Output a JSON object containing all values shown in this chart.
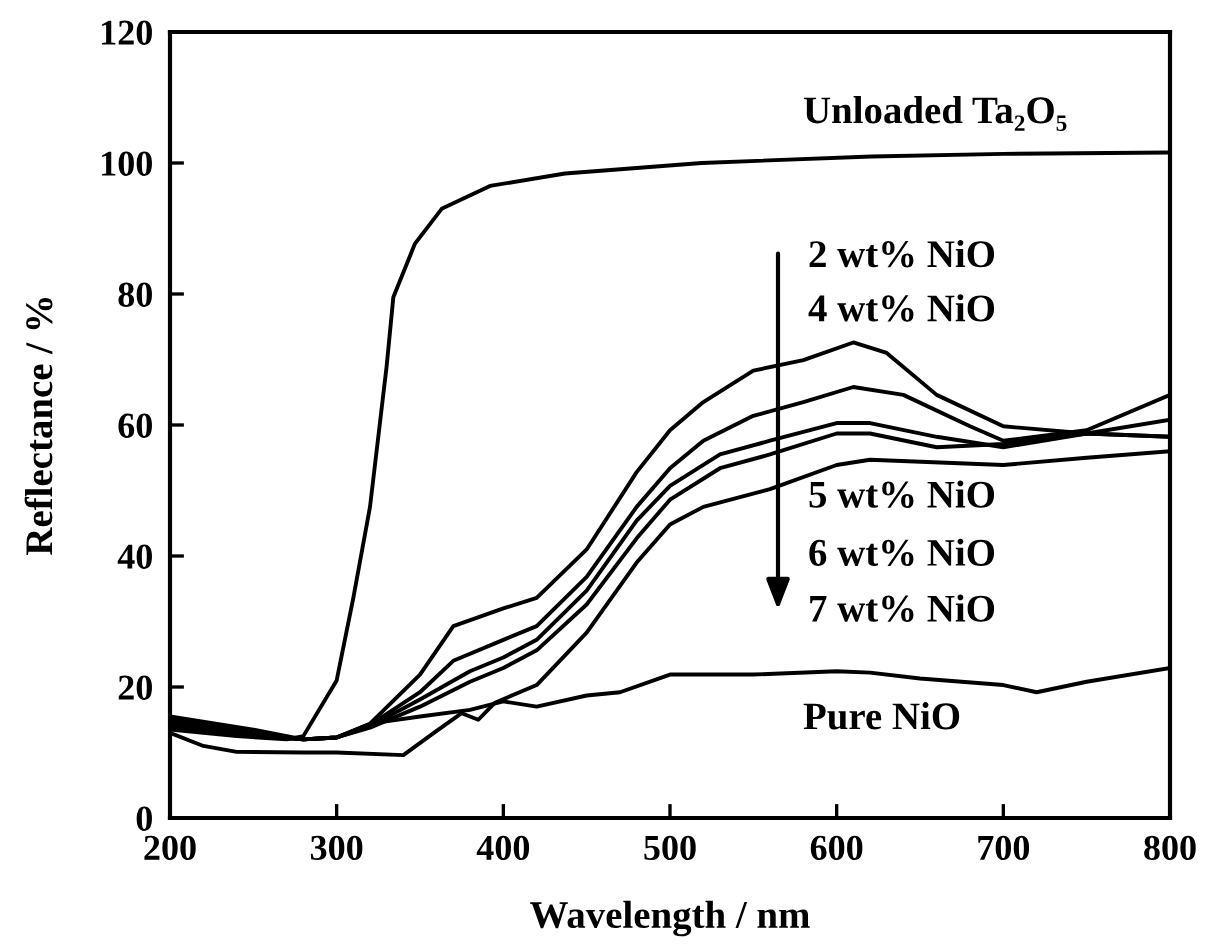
{
  "chart_data": {
    "type": "line",
    "xlabel": "Wavelength / nm",
    "ylabel": "Reflectance / %",
    "xlim": [
      200,
      800
    ],
    "ylim": [
      0,
      120
    ],
    "xticks": [
      200,
      300,
      400,
      500,
      600,
      700,
      800
    ],
    "yticks": [
      0,
      20,
      40,
      60,
      80,
      100,
      120
    ],
    "grid": false,
    "legend": false,
    "marker": "none",
    "line_style": "solid",
    "series": [
      {
        "color": "#000000",
        "x": [
          200,
          240,
          270,
          280,
          300,
          310,
          320,
          330,
          334,
          347,
          363,
          392,
          437,
          519,
          621,
          700,
          800
        ],
        "values": [
          13.5,
          12.5,
          12,
          12.5,
          21,
          33.6,
          47.5,
          69,
          79.5,
          87.7,
          93,
          96.5,
          98.4,
          100,
          101,
          101.4,
          101.6
        ]
      },
      {
        "color": "#000000",
        "x": [
          200,
          250,
          280,
          300,
          320,
          350,
          370,
          400,
          420,
          450,
          480,
          500,
          520,
          550,
          580,
          610,
          630,
          660,
          700,
          750,
          800
        ],
        "values": [
          15.5,
          13.5,
          12,
          12.3,
          14.4,
          21.9,
          29.3,
          32,
          33.6,
          41,
          52.8,
          59.2,
          63.5,
          68.3,
          69.9,
          72.6,
          71,
          64.6,
          59.8,
          58.7,
          58.2
        ]
      },
      {
        "color": "#000000",
        "x": [
          200,
          250,
          280,
          300,
          320,
          350,
          370,
          400,
          420,
          450,
          480,
          500,
          520,
          550,
          580,
          610,
          640,
          680,
          700,
          750,
          800
        ],
        "values": [
          15,
          13,
          12,
          12.3,
          14.2,
          19.2,
          24,
          27.2,
          29.3,
          36.8,
          47.5,
          53.4,
          57.6,
          61.4,
          63.5,
          65.8,
          64.6,
          59.8,
          57.6,
          59.2,
          64.6
        ]
      },
      {
        "color": "#000000",
        "x": [
          200,
          250,
          280,
          300,
          320,
          350,
          380,
          400,
          420,
          450,
          480,
          500,
          530,
          560,
          600,
          620,
          660,
          700,
          750,
          800
        ],
        "values": [
          14.5,
          12.8,
          12,
          12.3,
          14,
          18.1,
          22.4,
          24.5,
          27.2,
          34.7,
          45.4,
          50.7,
          55.5,
          57.6,
          60.3,
          60.3,
          58.2,
          56.6,
          58.7,
          60.8
        ]
      },
      {
        "color": "#000000",
        "x": [
          200,
          250,
          280,
          300,
          320,
          350,
          380,
          400,
          420,
          450,
          480,
          500,
          530,
          560,
          600,
          620,
          660,
          700,
          750,
          800
        ],
        "values": [
          14,
          12.5,
          12,
          12.3,
          13.8,
          17,
          20.8,
          22.9,
          25.6,
          32.6,
          42.7,
          48.6,
          53.4,
          55.5,
          58.7,
          58.7,
          56.6,
          57.1,
          58.7,
          58.2
        ]
      },
      {
        "color": "#000000",
        "x": [
          200,
          220,
          240,
          280,
          300,
          340,
          360,
          375,
          385,
          395,
          420,
          450,
          480,
          500,
          520,
          560,
          600,
          620,
          700,
          750,
          800
        ],
        "values": [
          13,
          11,
          10.1,
          10,
          10,
          9.6,
          13.3,
          16,
          15,
          17.6,
          20.3,
          28.3,
          39,
          44.8,
          47.5,
          50.2,
          53.9,
          54.7,
          53.9,
          55,
          56
        ]
      },
      {
        "color": "#000000",
        "x": [
          200,
          250,
          280,
          300,
          320,
          350,
          380,
          400,
          420,
          450,
          470,
          500,
          550,
          600,
          620,
          650,
          700,
          720,
          750,
          800
        ],
        "values": [
          14,
          12.5,
          12,
          12.3,
          14.4,
          15.5,
          16.5,
          17.8,
          17,
          18.7,
          19.2,
          21.9,
          21.9,
          22.4,
          22.2,
          21.3,
          20.3,
          19.2,
          20.8,
          22.9
        ]
      }
    ],
    "annotations": [
      "Unloaded Ta₂O₅",
      "2 wt% NiO",
      "4 wt% NiO",
      "5 wt% NiO",
      "6 wt% NiO",
      "7 wt% NiO",
      "Pure NiO"
    ]
  }
}
